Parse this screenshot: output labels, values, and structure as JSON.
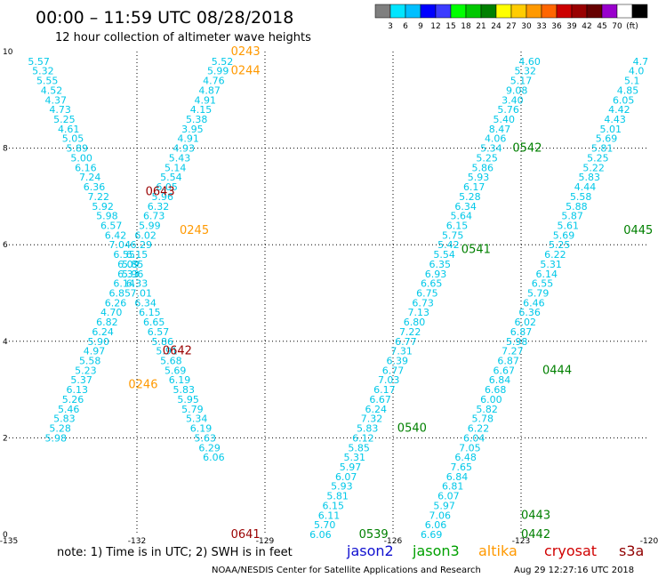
{
  "header": {
    "title": "00:00 – 11:59 UTC 08/28/2018",
    "subtitle": "12 hour collection of altimeter wave heights"
  },
  "colorbar": {
    "colors": [
      "#7f7f7f",
      "#00e5ff",
      "#00bfff",
      "#0000ff",
      "#3c3cff",
      "#00ff00",
      "#00c800",
      "#008000",
      "#ffff00",
      "#ffcc00",
      "#ff9900",
      "#ff6600",
      "#cc0000",
      "#990000",
      "#660000",
      "#9900cc",
      "#ffffff",
      "#000000"
    ],
    "labels": [
      "3",
      "6",
      "9",
      "12",
      "15",
      "18",
      "21",
      "24",
      "27",
      "30",
      "33",
      "36",
      "39",
      "42",
      "45",
      "70",
      "(ft)"
    ]
  },
  "footer": {
    "note": "note:  1) Time is in UTC;  2) SWH is in feet",
    "legend": [
      {
        "name": "jason2",
        "color": "#1010d0"
      },
      {
        "name": "jason3",
        "color": "#00a000"
      },
      {
        "name": "altika",
        "color": "#ff9900"
      },
      {
        "name": "cryosat",
        "color": "#d00000"
      },
      {
        "name": "s3a",
        "color": "#900000"
      }
    ],
    "credit": "NOAA/NESDIS Center for Satellite Applications and Research",
    "timestamp": "Aug 29 12:27:16 UTC 2018"
  },
  "chart_data": {
    "type": "scatter",
    "xlim": [
      -135,
      -120
    ],
    "ylim": [
      0,
      10
    ],
    "xticks": [
      "-135",
      "-132",
      "-129",
      "-126",
      "-123",
      "-120"
    ],
    "yticks": [
      "0",
      "2",
      "4",
      "6",
      "8",
      "10"
    ],
    "grid": true,
    "series": [
      {
        "name": "track-a",
        "color": "#00c8e8",
        "points": [
          [
            -134.3,
            9.8,
            "5.57"
          ],
          [
            -134.2,
            9.6,
            "5.32"
          ],
          [
            -134.1,
            9.4,
            "5.55"
          ],
          [
            -134.0,
            9.2,
            "4.52"
          ],
          [
            -133.9,
            9.0,
            "4.37"
          ],
          [
            -133.8,
            8.8,
            "4.73"
          ],
          [
            -133.7,
            8.6,
            "5.25"
          ],
          [
            -133.6,
            8.4,
            "4.61"
          ],
          [
            -133.5,
            8.2,
            "5.05"
          ],
          [
            -133.4,
            8.0,
            "5.89"
          ],
          [
            -133.3,
            7.8,
            "5.00"
          ],
          [
            -133.2,
            7.6,
            "6.16"
          ],
          [
            -133.1,
            7.4,
            "7.24"
          ],
          [
            -133.0,
            7.2,
            "6.36"
          ],
          [
            -132.9,
            7.0,
            "7.22"
          ],
          [
            -132.8,
            6.8,
            "5.92"
          ],
          [
            -132.7,
            6.6,
            "5.98"
          ],
          [
            -132.6,
            6.4,
            "6.57"
          ],
          [
            -132.5,
            6.2,
            "6.42"
          ],
          [
            -132.4,
            6.0,
            "7.04"
          ],
          [
            -132.3,
            5.8,
            "6.55"
          ],
          [
            -132.2,
            5.6,
            "6.09"
          ],
          [
            -132.1,
            5.4,
            "5.96"
          ],
          [
            -132.0,
            5.2,
            "6.33"
          ],
          [
            -131.9,
            5.0,
            "7.01"
          ],
          [
            -131.8,
            4.8,
            "6.34"
          ],
          [
            -131.7,
            4.6,
            "6.15"
          ],
          [
            -131.6,
            4.4,
            "6.65"
          ],
          [
            -131.5,
            4.2,
            "6.57"
          ],
          [
            -131.4,
            4.0,
            "5.86"
          ],
          [
            -131.3,
            3.8,
            "5.91"
          ],
          [
            -131.2,
            3.6,
            "5.68"
          ],
          [
            -131.1,
            3.4,
            "5.69"
          ],
          [
            -131.0,
            3.2,
            "6.19"
          ],
          [
            -130.9,
            3.0,
            "5.83"
          ],
          [
            -130.8,
            2.8,
            "5.95"
          ],
          [
            -130.7,
            2.6,
            "5.79"
          ],
          [
            -130.6,
            2.4,
            "5.34"
          ],
          [
            -130.5,
            2.2,
            "6.19"
          ],
          [
            -130.4,
            2.0,
            "5.63"
          ],
          [
            -130.3,
            1.8,
            "6.29"
          ],
          [
            -130.2,
            1.6,
            "6.06"
          ]
        ]
      },
      {
        "name": "track-b",
        "color": "#00c8e8",
        "points": [
          [
            -130.0,
            9.8,
            "5.52"
          ],
          [
            -130.1,
            9.6,
            "5.99"
          ],
          [
            -130.2,
            9.4,
            "4.76"
          ],
          [
            -130.3,
            9.2,
            "4.87"
          ],
          [
            -130.4,
            9.0,
            "4.91"
          ],
          [
            -130.5,
            8.8,
            "4.15"
          ],
          [
            -130.6,
            8.6,
            "5.38"
          ],
          [
            -130.7,
            8.4,
            "3.95"
          ],
          [
            -130.8,
            8.2,
            "4.91"
          ],
          [
            -130.9,
            8.0,
            "4.93"
          ],
          [
            -131.0,
            7.8,
            "5.43"
          ],
          [
            -131.1,
            7.6,
            "5.14"
          ],
          [
            -131.2,
            7.4,
            "5.54"
          ],
          [
            -131.3,
            7.2,
            "6.05"
          ],
          [
            -131.4,
            7.0,
            "5.96"
          ],
          [
            -131.5,
            6.8,
            "6.32"
          ],
          [
            -131.6,
            6.6,
            "6.73"
          ],
          [
            -131.7,
            6.4,
            "5.99"
          ],
          [
            -131.8,
            6.2,
            "6.02"
          ],
          [
            -131.9,
            6.0,
            "6.29"
          ],
          [
            -132.0,
            5.8,
            "6.15"
          ],
          [
            -132.1,
            5.6,
            "5.85"
          ],
          [
            -132.2,
            5.4,
            "6.33"
          ],
          [
            -132.3,
            5.2,
            "6.14"
          ],
          [
            -132.4,
            5.0,
            "6.85"
          ],
          [
            -132.5,
            4.8,
            "6.26"
          ],
          [
            -132.6,
            4.6,
            "4.70"
          ],
          [
            -132.7,
            4.4,
            "6.82"
          ],
          [
            -132.8,
            4.2,
            "6.24"
          ],
          [
            -132.9,
            4.0,
            "5.90"
          ],
          [
            -133.0,
            3.8,
            "4.97"
          ],
          [
            -133.1,
            3.6,
            "5.58"
          ],
          [
            -133.2,
            3.4,
            "5.23"
          ],
          [
            -133.3,
            3.2,
            "5.37"
          ],
          [
            -133.4,
            3.0,
            "6.13"
          ],
          [
            -133.5,
            2.8,
            "5.26"
          ],
          [
            -133.6,
            2.6,
            "5.46"
          ],
          [
            -133.7,
            2.4,
            "5.83"
          ],
          [
            -133.8,
            2.2,
            "5.28"
          ],
          [
            -133.9,
            2.0,
            "5.98"
          ]
        ]
      },
      {
        "name": "track-c",
        "color": "#00c8e8",
        "points": [
          [
            -122.8,
            9.8,
            "4.60"
          ],
          [
            -122.9,
            9.6,
            "5.32"
          ],
          [
            -123.0,
            9.4,
            "5.17"
          ],
          [
            -123.1,
            9.2,
            "9.08"
          ],
          [
            -123.2,
            9.0,
            "3.40"
          ],
          [
            -123.3,
            8.8,
            "5.76"
          ],
          [
            -123.4,
            8.6,
            "5.40"
          ],
          [
            -123.5,
            8.4,
            "8.47"
          ],
          [
            -123.6,
            8.2,
            "4.06"
          ],
          [
            -123.7,
            8.0,
            "5.34"
          ],
          [
            -123.8,
            7.8,
            "5.25"
          ],
          [
            -123.9,
            7.6,
            "5.86"
          ],
          [
            -124.0,
            7.4,
            "5.93"
          ],
          [
            -124.1,
            7.2,
            "6.17"
          ],
          [
            -124.2,
            7.0,
            "5.28"
          ],
          [
            -124.3,
            6.8,
            "6.34"
          ],
          [
            -124.4,
            6.6,
            "5.64"
          ],
          [
            -124.5,
            6.4,
            "6.15"
          ],
          [
            -124.6,
            6.2,
            "5.75"
          ],
          [
            -124.7,
            6.0,
            "5.42"
          ],
          [
            -124.8,
            5.8,
            "5.54"
          ],
          [
            -124.9,
            5.6,
            "6.35"
          ],
          [
            -125.0,
            5.4,
            "6.93"
          ],
          [
            -125.1,
            5.2,
            "6.65"
          ],
          [
            -125.2,
            5.0,
            "6.75"
          ],
          [
            -125.3,
            4.8,
            "6.73"
          ],
          [
            -125.4,
            4.6,
            "7.13"
          ],
          [
            -125.5,
            4.4,
            "6.80"
          ],
          [
            -125.6,
            4.2,
            "7.22"
          ],
          [
            -125.7,
            4.0,
            "6.77"
          ],
          [
            -125.8,
            3.8,
            "7.31"
          ],
          [
            -125.9,
            3.6,
            "6.39"
          ],
          [
            -126.0,
            3.4,
            "6.77"
          ],
          [
            -126.1,
            3.2,
            "7.03"
          ],
          [
            -126.2,
            3.0,
            "6.17"
          ],
          [
            -126.3,
            2.8,
            "6.67"
          ],
          [
            -126.4,
            2.6,
            "6.24"
          ],
          [
            -126.5,
            2.4,
            "7.32"
          ],
          [
            -126.6,
            2.2,
            "5.83"
          ],
          [
            -126.7,
            2.0,
            "6.12"
          ],
          [
            -126.8,
            1.8,
            "5.85"
          ],
          [
            -126.9,
            1.6,
            "5.31"
          ],
          [
            -127.0,
            1.4,
            "5.97"
          ],
          [
            -127.1,
            1.2,
            "6.07"
          ],
          [
            -127.2,
            1.0,
            "5.93"
          ],
          [
            -127.3,
            0.8,
            "5.81"
          ],
          [
            -127.4,
            0.6,
            "6.15"
          ],
          [
            -127.5,
            0.4,
            "6.11"
          ],
          [
            -127.6,
            0.2,
            "5.70"
          ],
          [
            -127.7,
            0.0,
            "6.06"
          ]
        ]
      },
      {
        "name": "track-d",
        "color": "#00c8e8",
        "points": [
          [
            -120.2,
            9.8,
            "4.7"
          ],
          [
            -120.3,
            9.6,
            "4.0"
          ],
          [
            -120.4,
            9.4,
            "5.1"
          ],
          [
            -120.5,
            9.2,
            "4.85"
          ],
          [
            -120.6,
            9.0,
            "6.05"
          ],
          [
            -120.7,
            8.8,
            "4.42"
          ],
          [
            -120.8,
            8.6,
            "4.43"
          ],
          [
            -120.9,
            8.4,
            "5.01"
          ],
          [
            -121.0,
            8.2,
            "5.69"
          ],
          [
            -121.1,
            8.0,
            "5.81"
          ],
          [
            -121.2,
            7.8,
            "5.25"
          ],
          [
            -121.3,
            7.6,
            "5.22"
          ],
          [
            -121.4,
            7.4,
            "5.83"
          ],
          [
            -121.5,
            7.2,
            "4.44"
          ],
          [
            -121.6,
            7.0,
            "5.58"
          ],
          [
            -121.7,
            6.8,
            "5.88"
          ],
          [
            -121.8,
            6.6,
            "5.87"
          ],
          [
            -121.9,
            6.4,
            "5.61"
          ],
          [
            -122.0,
            6.2,
            "5.69"
          ],
          [
            -122.1,
            6.0,
            "5.25"
          ],
          [
            -122.2,
            5.8,
            "6.22"
          ],
          [
            -122.3,
            5.6,
            "5.31"
          ],
          [
            -122.4,
            5.4,
            "6.14"
          ],
          [
            -122.5,
            5.2,
            "6.55"
          ],
          [
            -122.6,
            5.0,
            "5.79"
          ],
          [
            -122.7,
            4.8,
            "6.46"
          ],
          [
            -122.8,
            4.6,
            "6.36"
          ],
          [
            -122.9,
            4.4,
            "6.02"
          ],
          [
            -123.0,
            4.2,
            "6.87"
          ],
          [
            -123.1,
            4.0,
            "5.98"
          ],
          [
            -123.2,
            3.8,
            "7.27"
          ],
          [
            -123.3,
            3.6,
            "6.87"
          ],
          [
            -123.4,
            3.4,
            "6.67"
          ],
          [
            -123.5,
            3.2,
            "6.84"
          ],
          [
            -123.6,
            3.0,
            "6.68"
          ],
          [
            -123.7,
            2.8,
            "6.00"
          ],
          [
            -123.8,
            2.6,
            "5.82"
          ],
          [
            -123.9,
            2.4,
            "5.78"
          ],
          [
            -124.0,
            2.2,
            "6.22"
          ],
          [
            -124.1,
            2.0,
            "6.04"
          ],
          [
            -124.2,
            1.8,
            "7.05"
          ],
          [
            -124.3,
            1.6,
            "6.48"
          ],
          [
            -124.4,
            1.4,
            "7.65"
          ],
          [
            -124.5,
            1.2,
            "6.84"
          ],
          [
            -124.6,
            1.0,
            "6.81"
          ],
          [
            -124.7,
            0.8,
            "6.07"
          ],
          [
            -124.8,
            0.6,
            "5.97"
          ],
          [
            -124.9,
            0.4,
            "7.06"
          ],
          [
            -125.0,
            0.2,
            "6.06"
          ],
          [
            -125.1,
            0.0,
            "6.69"
          ]
        ]
      }
    ],
    "annotations": [
      {
        "x": -129.8,
        "y": 10.0,
        "text": "0243",
        "color": "#ff9900"
      },
      {
        "x": -129.8,
        "y": 9.6,
        "text": "0244",
        "color": "#ff9900"
      },
      {
        "x": -131.8,
        "y": 7.1,
        "text": "0643",
        "color": "#990000"
      },
      {
        "x": -131.0,
        "y": 6.3,
        "text": "0245",
        "color": "#ff9900"
      },
      {
        "x": -131.4,
        "y": 3.8,
        "text": "0642",
        "color": "#990000"
      },
      {
        "x": -132.2,
        "y": 3.1,
        "text": "0246",
        "color": "#ff9900"
      },
      {
        "x": -129.8,
        "y": 0.0,
        "text": "0641",
        "color": "#990000"
      },
      {
        "x": -123.2,
        "y": 8.0,
        "text": "0542",
        "color": "#008000"
      },
      {
        "x": -124.4,
        "y": 5.9,
        "text": "0541",
        "color": "#008000"
      },
      {
        "x": -125.9,
        "y": 2.2,
        "text": "0540",
        "color": "#008000"
      },
      {
        "x": -126.8,
        "y": 0.0,
        "text": "0539",
        "color": "#008000"
      },
      {
        "x": -120.6,
        "y": 6.3,
        "text": "0445",
        "color": "#008000"
      },
      {
        "x": -122.5,
        "y": 3.4,
        "text": "0444",
        "color": "#008000"
      },
      {
        "x": -123.0,
        "y": 0.4,
        "text": "0443",
        "color": "#008000"
      },
      {
        "x": -123.0,
        "y": 0.0,
        "text": "0442",
        "color": "#008000"
      }
    ]
  }
}
